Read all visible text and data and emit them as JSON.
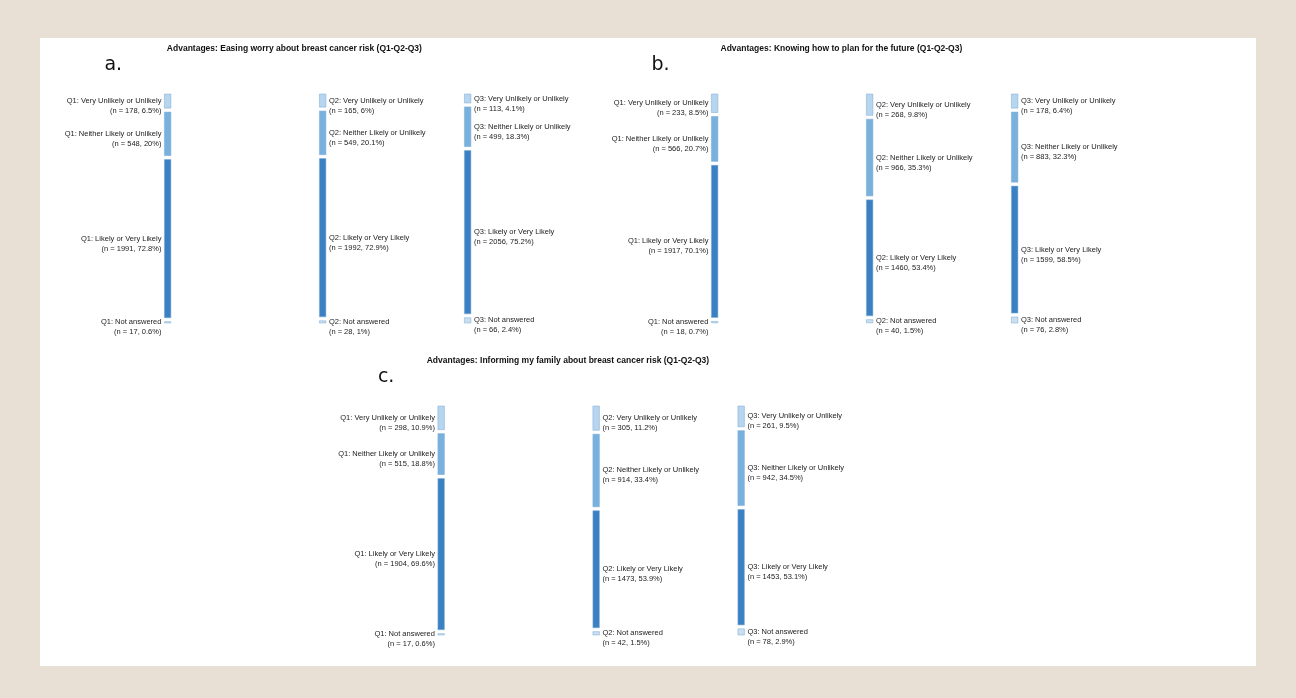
{
  "chart_data": [
    {
      "type": "other",
      "title": "Advantages: Easing worry about breast cancer risk (Q1-Q2-Q3)",
      "annotations": [
        "a."
      ],
      "categories": [
        "Q1: Very Unlikely or Unlikely",
        "Q1: Neither Likely or Unlikely",
        "Q1: Likely or Very Likely",
        "Q1: Not answered",
        "Q2: Very Unlikely or Unlikely",
        "Q2: Neither Likely or Unlikely",
        "Q2: Likely or Very Likely",
        "Q2: Not answered",
        "Q3: Very Unlikely or Unlikely",
        "Q3: Neither Likely or Unlikely",
        "Q3: Likely or Very Likely",
        "Q3: Not answered"
      ],
      "values": [
        178,
        548,
        1991,
        17,
        165,
        549,
        1992,
        28,
        113,
        499,
        2056,
        66
      ],
      "value_labels": [
        "(n = 178, 6.5%)",
        "(n = 548, 20%)",
        "(n = 1991, 72.8%)",
        "(n = 17, 0.6%)",
        "(n = 165, 6%)",
        "(n = 549, 20.1%)",
        "(n = 1992, 72.9%)",
        "(n = 28, 1%)",
        "(n = 113, 4.1%)",
        "(n = 499, 18.3%)",
        "(n = 2056, 75.2%)",
        "(n = 66, 2.4%)"
      ],
      "colors": [
        "#b7d5ee",
        "#78b1de",
        "#3a80c3",
        "#c9def0",
        "#b7d5ee",
        "#78b1de",
        "#3a80c3",
        "#c9def0",
        "#b7d5ee",
        "#78b1de",
        "#3a80c3",
        "#c9def0"
      ]
    },
    {
      "type": "other",
      "title": "Advantages: Knowing how to plan for the future (Q1-Q2-Q3)",
      "annotations": [
        "b."
      ],
      "categories": [
        "Q1: Very Unlikely or Unlikely",
        "Q1: Neither Likely or Unlikely",
        "Q1: Likely or Very Likely",
        "Q1: Not answered",
        "Q2: Very Unlikely or Unlikely",
        "Q2: Neither Likely or Unlikely",
        "Q2: Likely or Very Likely",
        "Q2: Not answered",
        "Q3: Very Unlikely or Unlikely",
        "Q3: Neither Likely or Unlikely",
        "Q3: Likely or Very Likely",
        "Q3: Not answered"
      ],
      "values": [
        233,
        566,
        1917,
        18,
        268,
        966,
        1460,
        40,
        178,
        883,
        1599,
        76
      ],
      "value_labels": [
        "(n = 233, 8.5%)",
        "(n = 566, 20.7%)",
        "(n = 1917, 70.1%)",
        "(n = 18, 0.7%)",
        "(n = 268, 9.8%)",
        "(n = 966, 35.3%)",
        "(n = 1460, 53.4%)",
        "(n = 40, 1.5%)",
        "(n = 178, 6.4%)",
        "(n = 883, 32.3%)",
        "(n = 1599, 58.5%)",
        "(n = 76, 2.8%)"
      ],
      "colors": [
        "#b7d5ee",
        "#78b1de",
        "#3a80c3",
        "#c9def0",
        "#b7d5ee",
        "#78b1de",
        "#3a80c3",
        "#c9def0",
        "#b7d5ee",
        "#78b1de",
        "#3a80c3",
        "#c9def0"
      ]
    },
    {
      "type": "other",
      "title": "Advantages: Informing my family about breast cancer risk (Q1-Q2-Q3)",
      "annotations": [
        "c."
      ],
      "categories": [
        "Q1: Very Unlikely or Unlikely",
        "Q1: Neither Likely or Unlikely",
        "Q1: Likely or Very Likely",
        "Q1: Not answered",
        "Q2: Very Unlikely or Unlikely",
        "Q2: Neither Likely or Unlikely",
        "Q2: Likely or Very Likely",
        "Q2: Not answered",
        "Q3: Very Unlikely or Unlikely",
        "Q3: Neither Likely or Unlikely",
        "Q3: Likely or Very Likely",
        "Q3: Not answered"
      ],
      "values": [
        298,
        515,
        1904,
        17,
        305,
        914,
        1473,
        42,
        261,
        942,
        1453,
        78
      ],
      "value_labels": [
        "(n = 298, 10.9%)",
        "(n = 515, 18.8%)",
        "(n = 1904, 69.6%)",
        "(n = 17, 0.6%)",
        "(n = 305, 11.2%)",
        "(n = 914, 33.4%)",
        "(n = 1473, 53.9%)",
        "(n = 42, 1.5%)",
        "(n = 261, 9.5%)",
        "(n = 942, 34.5%)",
        "(n = 1453, 53.1%)",
        "(n = 78, 2.9%)"
      ],
      "colors": [
        "#b7d5ee",
        "#78b1de",
        "#3a80c3",
        "#c9def0",
        "#b7d5ee",
        "#78b1de",
        "#3a80c3",
        "#c9def0",
        "#b7d5ee",
        "#78b1de",
        "#3a80c3",
        "#c9def0"
      ]
    }
  ]
}
